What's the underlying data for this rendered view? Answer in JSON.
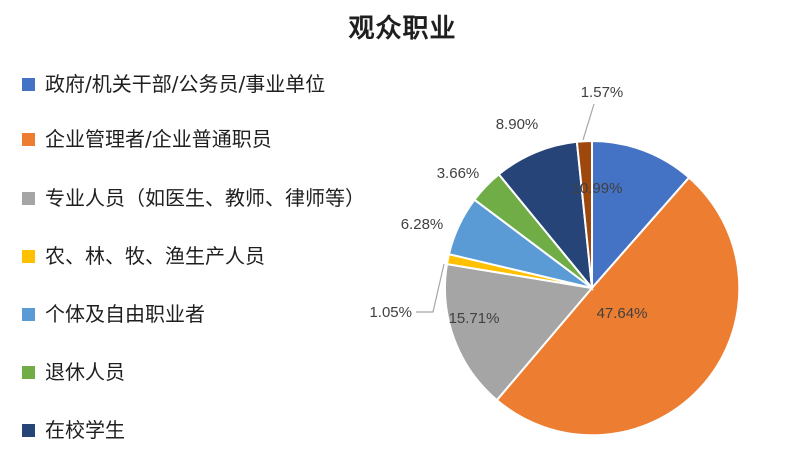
{
  "chart_data": {
    "type": "pie",
    "title": "观众职业",
    "categories": [
      "政府/机关干部/公务员/事业单位",
      "企业管理者/企业普通职员",
      "专业人员（如医生、教师、律师等）",
      "农、林、牧、渔生产人员",
      "个体及自由职业者",
      "退休人员",
      "在校学生",
      ""
    ],
    "values": [
      10.99,
      47.64,
      15.71,
      1.05,
      6.28,
      3.66,
      8.9,
      1.57
    ],
    "labels": [
      "10.99%",
      "47.64%",
      "15.71%",
      "1.05%",
      "6.28%",
      "3.66%",
      "8.90%",
      "1.57%"
    ],
    "colors": [
      "#4472C4",
      "#ED7D31",
      "#A5A5A5",
      "#FFC000",
      "#5B9BD5",
      "#70AD47",
      "#264478",
      "#9E480E"
    ],
    "legend_placement": "left"
  }
}
